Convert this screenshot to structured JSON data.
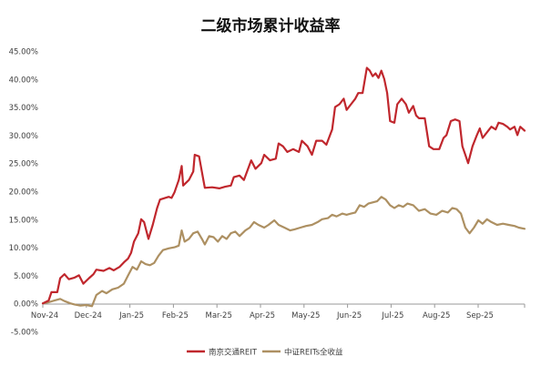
{
  "chart_data": {
    "type": "line",
    "title": "二级市场累计收益率",
    "x_tick_labels": [
      "Nov-24",
      "Dec-24",
      "Jan-25",
      "Feb-25",
      "Mar-25",
      "Apr-25",
      "May-25",
      "Jun-25",
      "Jul-25",
      "Aug-25",
      "Sep-25"
    ],
    "y_ticks": [
      -5,
      0,
      5,
      10,
      15,
      20,
      25,
      30,
      35,
      40,
      45
    ],
    "y_tick_labels": [
      "-5.00%",
      "0.00%",
      "5.00%",
      "10.00%",
      "15.00%",
      "20.00%",
      "25.00%",
      "30.00%",
      "35.00%",
      "40.00%",
      "45.00%"
    ],
    "ylim": [
      -5,
      45
    ],
    "grid": false,
    "legend_position": "bottom",
    "series": [
      {
        "name": "南京交通REIT",
        "color": "#c0272d",
        "points": [
          [
            "2024-11-08",
            0.0
          ],
          [
            "2024-11-12",
            0.5
          ],
          [
            "2024-11-14",
            2.0
          ],
          [
            "2024-11-18",
            2.0
          ],
          [
            "2024-11-20",
            4.5
          ],
          [
            "2024-11-23",
            5.2
          ],
          [
            "2024-11-26",
            4.3
          ],
          [
            "2024-11-30",
            4.6
          ],
          [
            "2024-12-03",
            5.0
          ],
          [
            "2024-12-06",
            3.5
          ],
          [
            "2024-12-10",
            4.5
          ],
          [
            "2024-12-13",
            5.2
          ],
          [
            "2024-12-15",
            6.0
          ],
          [
            "2024-12-20",
            5.8
          ],
          [
            "2024-12-24",
            6.3
          ],
          [
            "2024-12-27",
            5.9
          ],
          [
            "2024-12-31",
            6.5
          ],
          [
            "2025-01-03",
            7.3
          ],
          [
            "2025-01-06",
            8.0
          ],
          [
            "2025-01-08",
            9.0
          ],
          [
            "2025-01-10",
            11.0
          ],
          [
            "2025-01-13",
            12.5
          ],
          [
            "2025-01-15",
            15.0
          ],
          [
            "2025-01-17",
            14.5
          ],
          [
            "2025-01-20",
            11.5
          ],
          [
            "2025-01-23",
            14.0
          ],
          [
            "2025-01-26",
            17.0
          ],
          [
            "2025-01-28",
            18.5
          ],
          [
            "2025-02-03",
            19.0
          ],
          [
            "2025-02-05",
            18.8
          ],
          [
            "2025-02-07",
            19.8
          ],
          [
            "2025-02-10",
            22.0
          ],
          [
            "2025-02-12",
            24.5
          ],
          [
            "2025-02-13",
            21.0
          ],
          [
            "2025-02-17",
            22.0
          ],
          [
            "2025-02-20",
            23.5
          ],
          [
            "2025-02-21",
            26.5
          ],
          [
            "2025-02-24",
            26.2
          ],
          [
            "2025-02-27",
            22.0
          ],
          [
            "2025-02-28",
            20.6
          ],
          [
            "2025-03-05",
            20.7
          ],
          [
            "2025-03-10",
            20.5
          ],
          [
            "2025-03-14",
            20.8
          ],
          [
            "2025-03-18",
            21.0
          ],
          [
            "2025-03-20",
            22.5
          ],
          [
            "2025-03-24",
            22.8
          ],
          [
            "2025-03-27",
            22.0
          ],
          [
            "2025-04-01",
            25.5
          ],
          [
            "2025-04-04",
            24.0
          ],
          [
            "2025-04-08",
            25.0
          ],
          [
            "2025-04-10",
            26.5
          ],
          [
            "2025-04-14",
            25.5
          ],
          [
            "2025-04-18",
            25.8
          ],
          [
            "2025-04-20",
            28.5
          ],
          [
            "2025-04-23",
            28.0
          ],
          [
            "2025-04-26",
            27.0
          ],
          [
            "2025-04-30",
            27.5
          ],
          [
            "2025-05-04",
            27.0
          ],
          [
            "2025-05-06",
            29.0
          ],
          [
            "2025-05-10",
            28.0
          ],
          [
            "2025-05-13",
            26.5
          ],
          [
            "2025-05-16",
            29.0
          ],
          [
            "2025-05-20",
            29.0
          ],
          [
            "2025-05-23",
            28.3
          ],
          [
            "2025-05-24",
            29.0
          ],
          [
            "2025-05-27",
            31.0
          ],
          [
            "2025-05-29",
            35.0
          ],
          [
            "2025-06-01",
            35.5
          ],
          [
            "2025-06-04",
            36.5
          ],
          [
            "2025-06-06",
            34.5
          ],
          [
            "2025-06-09",
            35.5
          ],
          [
            "2025-06-12",
            36.5
          ],
          [
            "2025-06-14",
            37.5
          ],
          [
            "2025-06-17",
            37.5
          ],
          [
            "2025-06-20",
            42.0
          ],
          [
            "2025-06-22",
            41.5
          ],
          [
            "2025-06-24",
            40.5
          ],
          [
            "2025-06-26",
            41.0
          ],
          [
            "2025-06-28",
            40.2
          ],
          [
            "2025-06-30",
            41.5
          ],
          [
            "2025-07-02",
            40.0
          ],
          [
            "2025-07-04",
            37.5
          ],
          [
            "2025-07-06",
            32.5
          ],
          [
            "2025-07-09",
            32.2
          ],
          [
            "2025-07-11",
            35.5
          ],
          [
            "2025-07-14",
            36.5
          ],
          [
            "2025-07-17",
            35.5
          ],
          [
            "2025-07-19",
            34.0
          ],
          [
            "2025-07-22",
            35.2
          ],
          [
            "2025-07-24",
            33.5
          ],
          [
            "2025-07-26",
            33.0
          ],
          [
            "2025-07-30",
            33.0
          ],
          [
            "2025-08-02",
            28.0
          ],
          [
            "2025-08-05",
            27.5
          ],
          [
            "2025-08-09",
            27.5
          ],
          [
            "2025-08-12",
            29.5
          ],
          [
            "2025-08-14",
            30.0
          ],
          [
            "2025-08-17",
            32.5
          ],
          [
            "2025-08-20",
            32.8
          ],
          [
            "2025-08-23",
            32.5
          ],
          [
            "2025-08-25",
            28.0
          ],
          [
            "2025-08-27",
            26.5
          ],
          [
            "2025-08-29",
            25.0
          ],
          [
            "2025-09-01",
            28.0
          ],
          [
            "2025-09-04",
            30.0
          ],
          [
            "2025-09-06",
            31.2
          ],
          [
            "2025-09-08",
            29.5
          ],
          [
            "2025-09-11",
            30.5
          ],
          [
            "2025-09-14",
            31.5
          ],
          [
            "2025-09-17",
            31.0
          ],
          [
            "2025-09-19",
            32.2
          ],
          [
            "2025-09-22",
            32.0
          ],
          [
            "2025-09-25",
            31.5
          ],
          [
            "2025-09-27",
            31.0
          ],
          [
            "2025-09-30",
            31.5
          ],
          [
            "2025-10-02",
            30.0
          ],
          [
            "2025-10-04",
            31.5
          ],
          [
            "2025-10-07",
            30.8
          ]
        ]
      },
      {
        "name": "中证REITs全收益",
        "color": "#ad9062",
        "points": [
          [
            "2024-11-08",
            0.0
          ],
          [
            "2024-11-12",
            0.2
          ],
          [
            "2024-11-16",
            0.5
          ],
          [
            "2024-11-20",
            0.8
          ],
          [
            "2024-11-23",
            0.4
          ],
          [
            "2024-11-27",
            0.0
          ],
          [
            "2024-11-30",
            -0.2
          ],
          [
            "2024-12-04",
            -0.4
          ],
          [
            "2024-12-08",
            -0.3
          ],
          [
            "2024-12-12",
            -0.5
          ],
          [
            "2024-12-15",
            1.5
          ],
          [
            "2024-12-19",
            2.2
          ],
          [
            "2024-12-22",
            1.8
          ],
          [
            "2024-12-26",
            2.5
          ],
          [
            "2024-12-30",
            2.8
          ],
          [
            "2025-01-03",
            3.5
          ],
          [
            "2025-01-06",
            5.0
          ],
          [
            "2025-01-09",
            6.5
          ],
          [
            "2025-01-12",
            6.0
          ],
          [
            "2025-01-15",
            7.5
          ],
          [
            "2025-01-18",
            7.0
          ],
          [
            "2025-01-21",
            6.8
          ],
          [
            "2025-01-24",
            7.2
          ],
          [
            "2025-01-27",
            8.5
          ],
          [
            "2025-01-30",
            9.5
          ],
          [
            "2025-02-03",
            9.8
          ],
          [
            "2025-02-07",
            10.0
          ],
          [
            "2025-02-10",
            10.3
          ],
          [
            "2025-02-12",
            13.0
          ],
          [
            "2025-02-14",
            11.0
          ],
          [
            "2025-02-17",
            11.5
          ],
          [
            "2025-02-20",
            12.5
          ],
          [
            "2025-02-23",
            12.8
          ],
          [
            "2025-02-26",
            11.5
          ],
          [
            "2025-02-28",
            10.5
          ],
          [
            "2025-03-03",
            12.0
          ],
          [
            "2025-03-06",
            11.8
          ],
          [
            "2025-03-09",
            11.0
          ],
          [
            "2025-03-12",
            12.0
          ],
          [
            "2025-03-15",
            11.5
          ],
          [
            "2025-03-18",
            12.5
          ],
          [
            "2025-03-21",
            12.8
          ],
          [
            "2025-03-24",
            12.0
          ],
          [
            "2025-03-28",
            13.0
          ],
          [
            "2025-03-31",
            13.5
          ],
          [
            "2025-04-03",
            14.5
          ],
          [
            "2025-04-06",
            14.0
          ],
          [
            "2025-04-10",
            13.5
          ],
          [
            "2025-04-13",
            14.0
          ],
          [
            "2025-04-17",
            14.8
          ],
          [
            "2025-04-20",
            14.0
          ],
          [
            "2025-04-24",
            13.5
          ],
          [
            "2025-04-28",
            13.0
          ],
          [
            "2025-05-01",
            13.2
          ],
          [
            "2025-05-05",
            13.5
          ],
          [
            "2025-05-09",
            13.8
          ],
          [
            "2025-05-13",
            14.0
          ],
          [
            "2025-05-17",
            14.5
          ],
          [
            "2025-05-20",
            15.0
          ],
          [
            "2025-05-24",
            15.2
          ],
          [
            "2025-05-27",
            15.8
          ],
          [
            "2025-05-30",
            15.5
          ],
          [
            "2025-06-03",
            16.0
          ],
          [
            "2025-06-06",
            15.8
          ],
          [
            "2025-06-09",
            16.0
          ],
          [
            "2025-06-12",
            16.2
          ],
          [
            "2025-06-15",
            17.5
          ],
          [
            "2025-06-18",
            17.2
          ],
          [
            "2025-06-21",
            17.8
          ],
          [
            "2025-06-24",
            18.0
          ],
          [
            "2025-06-27",
            18.2
          ],
          [
            "2025-06-30",
            19.0
          ],
          [
            "2025-07-03",
            18.5
          ],
          [
            "2025-07-06",
            17.5
          ],
          [
            "2025-07-09",
            17.0
          ],
          [
            "2025-07-12",
            17.5
          ],
          [
            "2025-07-15",
            17.2
          ],
          [
            "2025-07-18",
            17.8
          ],
          [
            "2025-07-22",
            17.5
          ],
          [
            "2025-07-26",
            16.5
          ],
          [
            "2025-07-30",
            16.8
          ],
          [
            "2025-08-03",
            16.0
          ],
          [
            "2025-08-07",
            15.8
          ],
          [
            "2025-08-11",
            16.5
          ],
          [
            "2025-08-15",
            16.2
          ],
          [
            "2025-08-18",
            17.0
          ],
          [
            "2025-08-21",
            16.8
          ],
          [
            "2025-08-24",
            16.0
          ],
          [
            "2025-08-27",
            13.5
          ],
          [
            "2025-08-30",
            12.5
          ],
          [
            "2025-09-02",
            13.5
          ],
          [
            "2025-09-05",
            14.8
          ],
          [
            "2025-09-08",
            14.2
          ],
          [
            "2025-09-11",
            15.0
          ],
          [
            "2025-09-14",
            14.5
          ],
          [
            "2025-09-18",
            14.0
          ],
          [
            "2025-09-22",
            14.2
          ],
          [
            "2025-09-26",
            14.0
          ],
          [
            "2025-09-30",
            13.8
          ],
          [
            "2025-10-03",
            13.5
          ],
          [
            "2025-10-07",
            13.3
          ]
        ]
      }
    ]
  }
}
